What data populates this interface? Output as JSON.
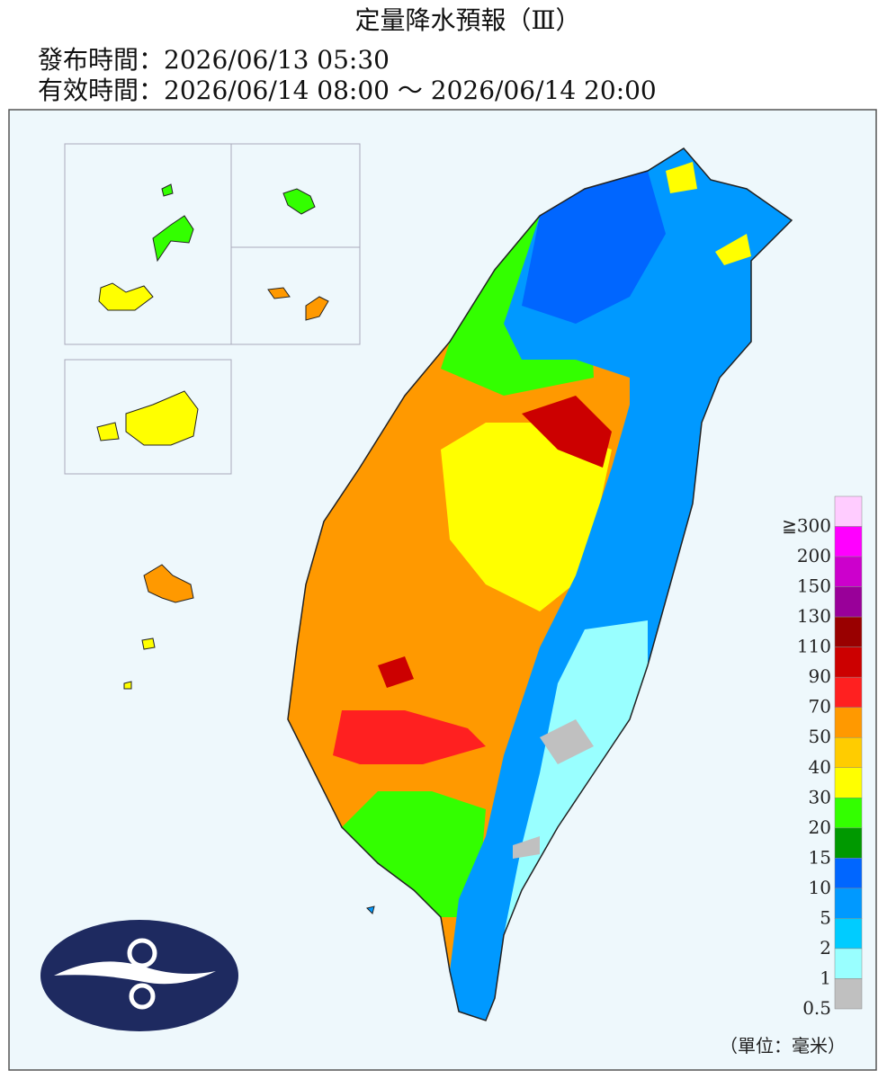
{
  "header": {
    "title": "定量降水預報（Ⅲ）",
    "issue_time": "發布時間：2026/06/13 05:30",
    "valid_time": "有效時間：2026/06/14 08:00 ～ 2026/06/14 20:00"
  },
  "legend": {
    "unit": "（單位：毫米）",
    "levels": [
      {
        "label": "≧300",
        "color": "#ffccff"
      },
      {
        "label": "200",
        "color": "#ff00ff"
      },
      {
        "label": "150",
        "color": "#cc00cc"
      },
      {
        "label": "130",
        "color": "#990099"
      },
      {
        "label": "110",
        "color": "#990000"
      },
      {
        "label": "90",
        "color": "#cc0000"
      },
      {
        "label": "70",
        "color": "#ff2020"
      },
      {
        "label": "50",
        "color": "#ff9900"
      },
      {
        "label": "40",
        "color": "#ffcc00"
      },
      {
        "label": "30",
        "color": "#ffff00"
      },
      {
        "label": "20",
        "color": "#33ff00"
      },
      {
        "label": "15",
        "color": "#009900"
      },
      {
        "label": "10",
        "color": "#0066ff"
      },
      {
        "label": "5",
        "color": "#0099ff"
      },
      {
        "label": "2",
        "color": "#00ccff"
      },
      {
        "label": "1",
        "color": "#99ffff"
      },
      {
        "label": "0.5",
        "color": "#c0c0c0"
      }
    ]
  }
}
